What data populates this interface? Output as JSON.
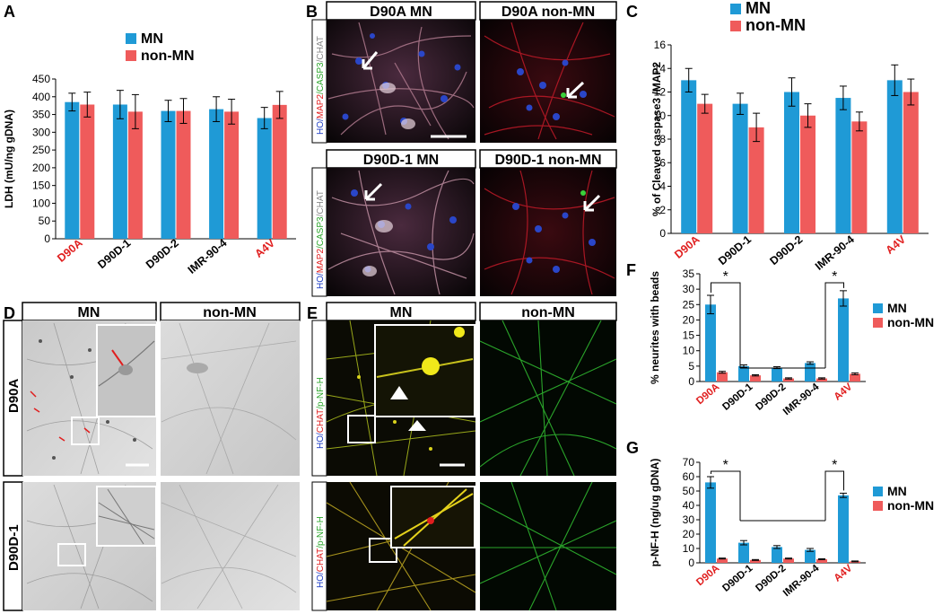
{
  "colors": {
    "mn": "#1f9ad6",
    "non_mn": "#ef5b5b",
    "red_label": "#e01e1e"
  },
  "panels": {
    "a": "A",
    "b": "B",
    "c": "C",
    "d": "D",
    "e": "E",
    "f": "F",
    "g": "G"
  },
  "panel_b": {
    "headers": [
      "D90A MN",
      "D90A non-MN",
      "D90D-1 MN",
      "D90D-1 non-MN"
    ],
    "stain_hoechst": "HO/",
    "stain_map2": "MAP2",
    "stain_casp3": "/CASP3",
    "stain_chat": "/CHAT"
  },
  "panel_d": {
    "col_mn": "MN",
    "col_non_mn": "non-MN",
    "row_1": "D90A",
    "row_2": "D90D-1"
  },
  "panel_e": {
    "col_mn": "MN",
    "col_non_mn": "non-MN",
    "stain_hoechst": "HO/",
    "stain_chat": "CHAT",
    "stain_pnfh": "/p-NF-H"
  },
  "chart_data": [
    {
      "panel": "A",
      "type": "bar",
      "categories": [
        "D90A",
        "D90D-1",
        "D90D-2",
        "IMR-90-4",
        "A4V"
      ],
      "category_colors": [
        "red",
        "black",
        "black",
        "black",
        "red"
      ],
      "series": [
        {
          "name": "MN",
          "values": [
            385,
            378,
            360,
            365,
            340
          ],
          "errors": [
            25,
            40,
            30,
            35,
            30
          ]
        },
        {
          "name": "non-MN",
          "values": [
            378,
            358,
            360,
            358,
            377
          ],
          "errors": [
            35,
            48,
            35,
            35,
            38
          ]
        }
      ],
      "ylabel": "LDH (mU/ng gDNA)",
      "ylim": [
        0,
        450
      ],
      "yticks": [
        0,
        50,
        100,
        150,
        200,
        250,
        300,
        350,
        400,
        450
      ],
      "legend": "top-center"
    },
    {
      "panel": "C",
      "type": "bar",
      "categories": [
        "D90A",
        "D90D-1",
        "D90D-2",
        "IMR-90-4",
        "A4V"
      ],
      "category_colors": [
        "red",
        "black",
        "black",
        "black",
        "red"
      ],
      "series": [
        {
          "name": "MN",
          "values": [
            13,
            11,
            12,
            11.5,
            13
          ],
          "errors": [
            1,
            0.9,
            1.2,
            1,
            1.3
          ]
        },
        {
          "name": "non-MN",
          "values": [
            11,
            9,
            10,
            9.5,
            12
          ],
          "errors": [
            0.8,
            1.2,
            1,
            0.8,
            1.1
          ]
        }
      ],
      "ylabel": "% of Cleaved caspase3 /MAP2",
      "ylim": [
        0,
        16
      ],
      "yticks": [
        0,
        2,
        4,
        6,
        8,
        10,
        12,
        14,
        16
      ],
      "legend": "top-center"
    },
    {
      "panel": "F",
      "type": "bar",
      "categories": [
        "D90A",
        "D90D-1",
        "D90D-2",
        "IMR-90-4",
        "A4V"
      ],
      "category_colors": [
        "red",
        "black",
        "black",
        "black",
        "red"
      ],
      "series": [
        {
          "name": "MN",
          "values": [
            25,
            5,
            4.5,
            6,
            27
          ],
          "errors": [
            3,
            0.4,
            0.3,
            0.4,
            2.5
          ]
        },
        {
          "name": "non-MN",
          "values": [
            3,
            2,
            1,
            1,
            2.5
          ],
          "errors": [
            0.3,
            0.2,
            0.2,
            0.2,
            0.3
          ]
        }
      ],
      "ylabel": "% neurites with beads",
      "ylim": [
        0,
        35
      ],
      "yticks": [
        0,
        5,
        10,
        15,
        20,
        25,
        30,
        35
      ],
      "legend": "right",
      "significance": [
        "*",
        "*"
      ]
    },
    {
      "panel": "G",
      "type": "bar",
      "categories": [
        "D90A",
        "D90D-1",
        "D90D-2",
        "IMR-90-4",
        "A4V"
      ],
      "category_colors": [
        "red",
        "black",
        "black",
        "black",
        "red"
      ],
      "series": [
        {
          "name": "MN",
          "values": [
            56,
            14,
            11,
            9,
            47
          ],
          "errors": [
            4,
            1.5,
            1,
            1,
            1.5
          ]
        },
        {
          "name": "non-MN",
          "values": [
            3,
            2,
            3,
            2.5,
            1
          ],
          "errors": [
            0.3,
            0.3,
            0.3,
            0.3,
            0.3
          ]
        }
      ],
      "ylabel": "p-NF-H (ng/ug gDNA)",
      "ylim": [
        0,
        70
      ],
      "yticks": [
        0,
        10,
        20,
        30,
        40,
        50,
        60,
        70
      ],
      "legend": "right",
      "significance": [
        "*",
        "*"
      ]
    }
  ]
}
